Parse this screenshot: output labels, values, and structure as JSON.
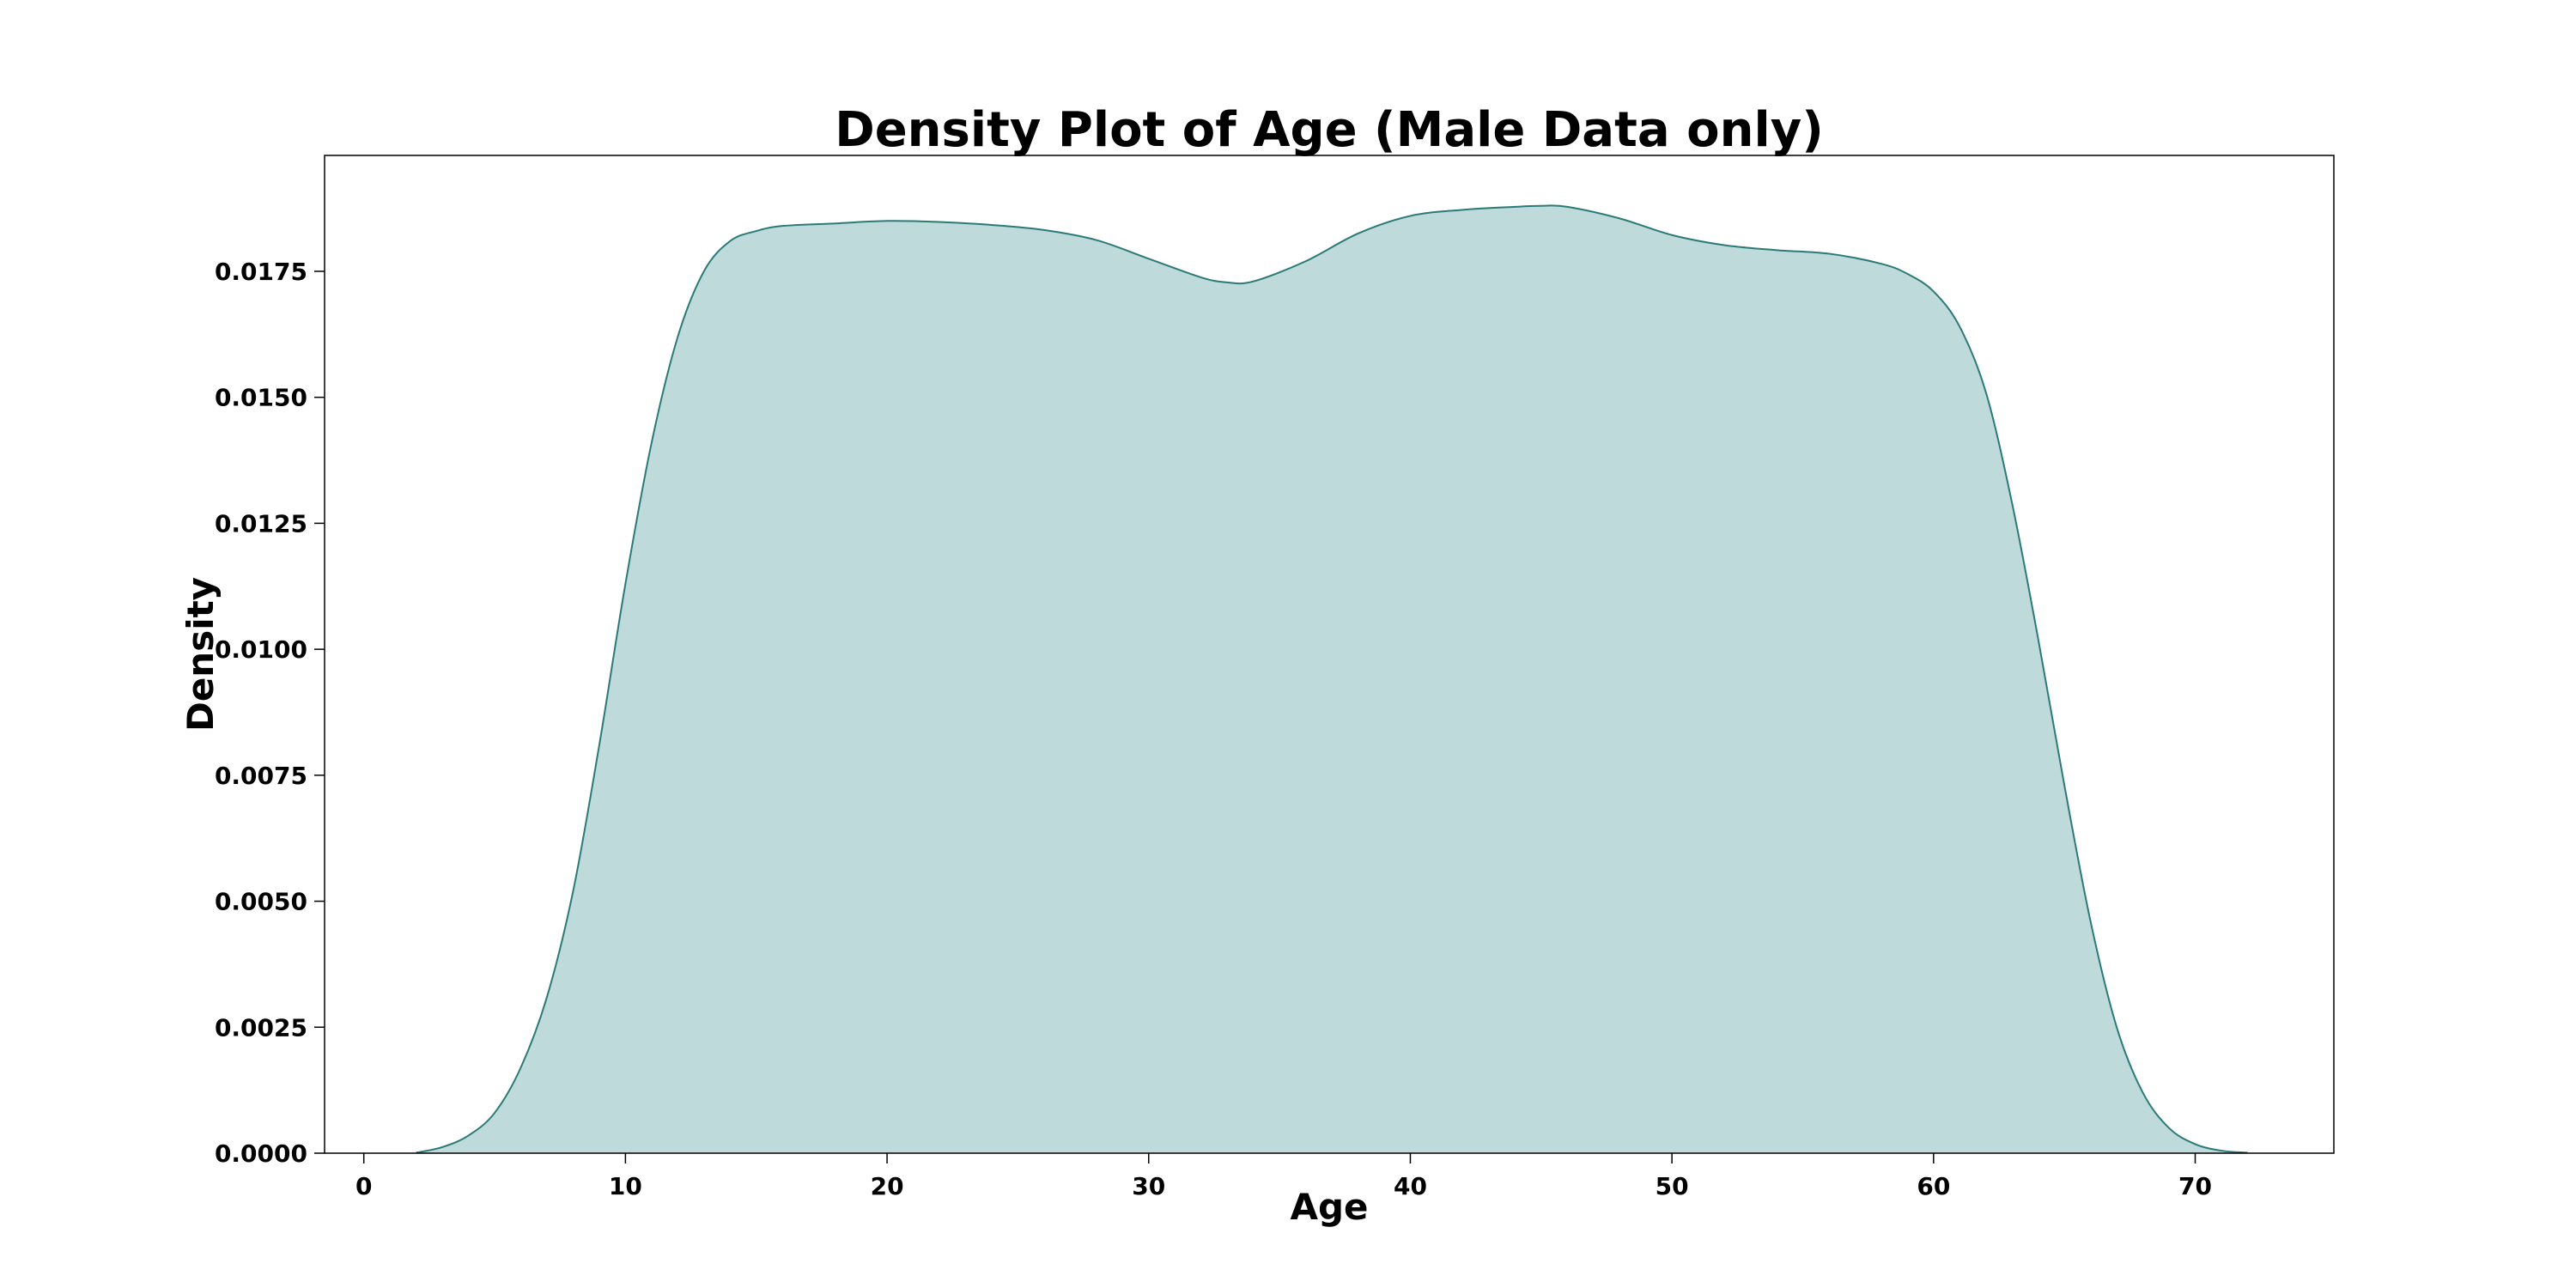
{
  "chart_data": {
    "type": "area",
    "title": "Density Plot of Age (Male Data only)",
    "xlabel": "Age",
    "ylabel": "Density",
    "xlim": [
      -1.5,
      75.3
    ],
    "ylim": [
      0,
      0.0198
    ],
    "xticks": [
      0,
      10,
      20,
      30,
      40,
      50,
      60,
      70
    ],
    "yticks": [
      0.0,
      0.0025,
      0.005,
      0.0075,
      0.01,
      0.0125,
      0.015,
      0.0175
    ],
    "ytick_labels": [
      "0.0000",
      "0.0025",
      "0.0050",
      "0.0075",
      "0.0100",
      "0.0125",
      "0.0150",
      "0.0175"
    ],
    "grid": false,
    "legend": null,
    "fill_color": "#bfdada",
    "line_color": "#2a7a78",
    "series": [
      {
        "x": [
          2,
          3,
          4,
          5,
          6,
          7,
          8,
          9,
          10,
          11,
          12,
          13,
          14,
          15,
          16,
          18,
          20,
          22,
          24,
          26,
          28,
          30,
          32,
          33,
          34,
          36,
          38,
          40,
          42,
          44,
          45,
          46,
          48,
          50,
          52,
          54,
          56,
          58,
          59,
          60,
          61,
          62,
          63,
          64,
          65,
          66,
          67,
          68,
          69,
          70,
          71,
          72
        ],
        "y": [
          1e-05,
          0.00012,
          0.00035,
          0.0008,
          0.0017,
          0.0031,
          0.0052,
          0.0081,
          0.0113,
          0.0141,
          0.0162,
          0.0175,
          0.0181,
          0.0183,
          0.0184,
          0.01845,
          0.0185,
          0.01848,
          0.01842,
          0.01832,
          0.01812,
          0.01775,
          0.01738,
          0.01728,
          0.0173,
          0.0177,
          0.01825,
          0.0186,
          0.01872,
          0.01878,
          0.0188,
          0.01878,
          0.01855,
          0.01822,
          0.01802,
          0.01792,
          0.01785,
          0.01765,
          0.01745,
          0.0171,
          0.0164,
          0.0151,
          0.0129,
          0.0102,
          0.0073,
          0.0046,
          0.0025,
          0.0012,
          0.0005,
          0.00018,
          5e-05,
          1e-05
        ]
      }
    ]
  }
}
